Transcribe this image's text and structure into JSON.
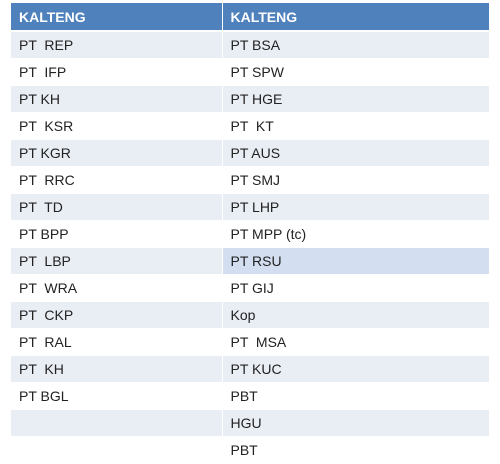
{
  "headers": [
    "KALTENG",
    "KALTENG"
  ],
  "rows": [
    [
      "PT  REP",
      "PT BSA"
    ],
    [
      "PT  IFP",
      "PT SPW"
    ],
    [
      "PT KH",
      "PT HGE"
    ],
    [
      "PT  KSR",
      "PT  KT"
    ],
    [
      "PT KGR",
      "PT AUS"
    ],
    [
      "PT  RRC",
      "PT SMJ"
    ],
    [
      "PT  TD",
      "PT LHP"
    ],
    [
      "PT BPP",
      "PT MPP (tc)"
    ],
    [
      "PT  LBP",
      "PT RSU"
    ],
    [
      "PT  WRA",
      "PT GIJ"
    ],
    [
      "PT  CKP",
      "Kop"
    ],
    [
      "PT  RAL",
      "PT  MSA"
    ],
    [
      "PT  KH",
      "PT KUC"
    ],
    [
      "PT BGL",
      "PBT"
    ],
    [
      "",
      "HGU"
    ],
    [
      "",
      "PBT"
    ]
  ],
  "highlighted_cell": {
    "row": 8,
    "col": 1
  }
}
